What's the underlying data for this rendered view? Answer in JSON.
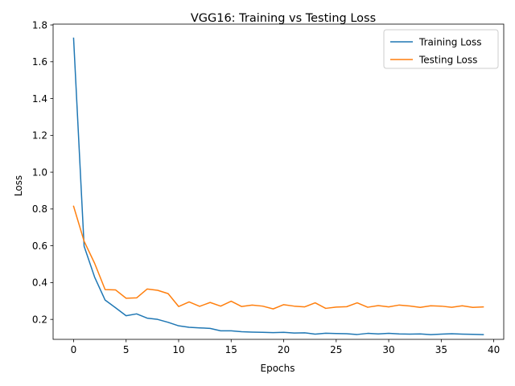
{
  "chart_data": {
    "type": "line",
    "title": "VGG16: Training vs Testing Loss",
    "xlabel": "Epochs",
    "ylabel": "Loss",
    "xlim": [
      -1.95,
      40.95
    ],
    "ylim": [
      0.0915,
      1.8045
    ],
    "xticks": [
      0,
      5,
      10,
      15,
      20,
      25,
      30,
      35,
      40
    ],
    "yticks": [
      0.2,
      0.4,
      0.6,
      0.8,
      1.0,
      1.2,
      1.4,
      1.6,
      1.8
    ],
    "ytick_labels": [
      "0.2",
      "0.4",
      "0.6",
      "0.8",
      "1.0",
      "1.2",
      "1.4",
      "1.6",
      "1.8"
    ],
    "legend_position": "top-right",
    "grid": false,
    "x": [
      0,
      1,
      2,
      3,
      4,
      5,
      6,
      7,
      8,
      9,
      10,
      11,
      12,
      13,
      14,
      15,
      16,
      17,
      18,
      19,
      20,
      21,
      22,
      23,
      24,
      25,
      26,
      27,
      28,
      29,
      30,
      31,
      32,
      33,
      34,
      35,
      36,
      37,
      38,
      39
    ],
    "series": [
      {
        "name": "Training Loss",
        "color": "#1f77b4",
        "values": [
          1.728,
          0.598,
          0.43,
          0.305,
          0.263,
          0.22,
          0.23,
          0.207,
          0.2,
          0.184,
          0.165,
          0.157,
          0.154,
          0.151,
          0.138,
          0.138,
          0.133,
          0.131,
          0.13,
          0.128,
          0.13,
          0.126,
          0.127,
          0.12,
          0.125,
          0.123,
          0.122,
          0.118,
          0.124,
          0.121,
          0.124,
          0.121,
          0.12,
          0.121,
          0.117,
          0.12,
          0.122,
          0.12,
          0.119,
          0.117
        ]
      },
      {
        "name": "Testing Loss",
        "color": "#ff7f0e",
        "values": [
          0.815,
          0.625,
          0.505,
          0.362,
          0.36,
          0.315,
          0.317,
          0.365,
          0.358,
          0.34,
          0.27,
          0.295,
          0.271,
          0.292,
          0.272,
          0.299,
          0.27,
          0.278,
          0.272,
          0.257,
          0.28,
          0.272,
          0.268,
          0.29,
          0.26,
          0.267,
          0.269,
          0.29,
          0.266,
          0.275,
          0.268,
          0.278,
          0.273,
          0.265,
          0.274,
          0.272,
          0.266,
          0.274,
          0.265,
          0.268
        ]
      }
    ]
  }
}
